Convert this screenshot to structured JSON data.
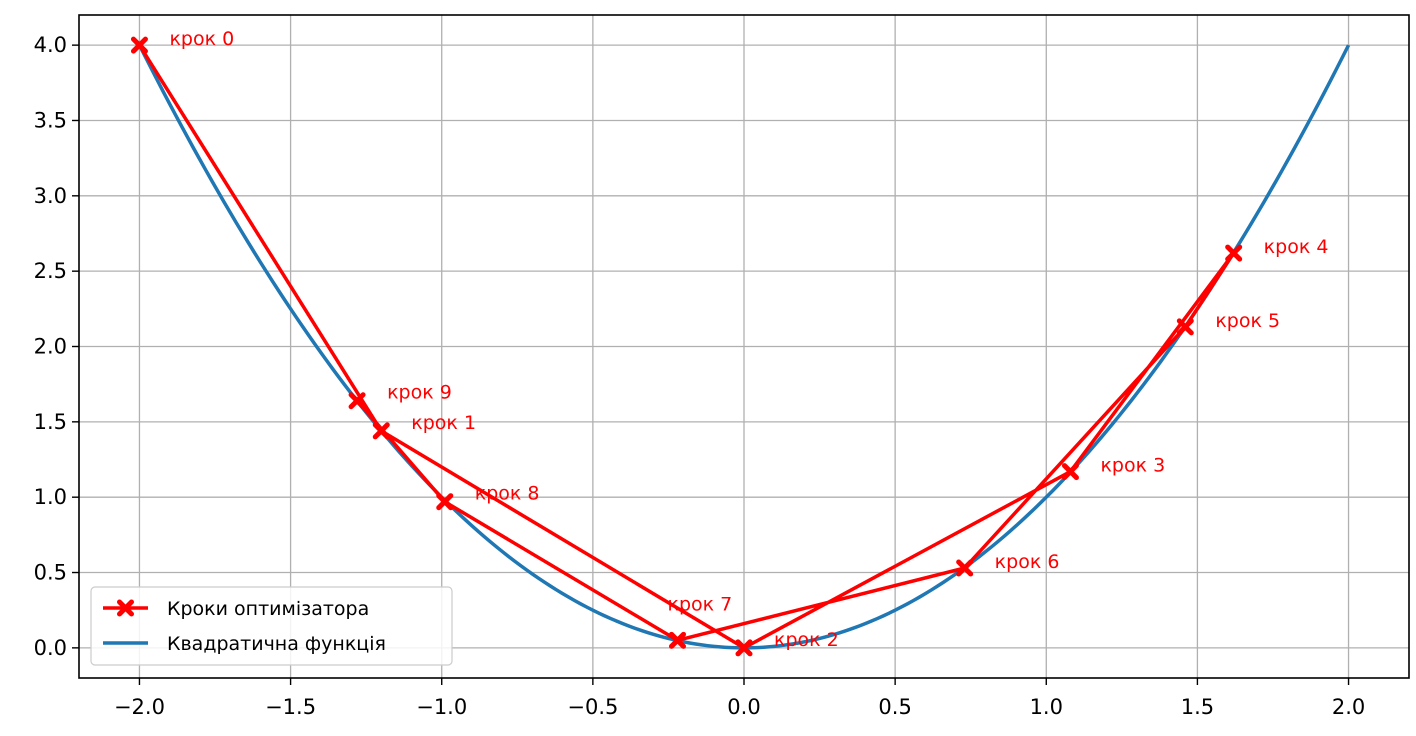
{
  "chart_data": {
    "type": "line",
    "title": "",
    "xlabel": "",
    "ylabel": "",
    "xlim": [
      -2.2,
      2.2
    ],
    "ylim": [
      -0.2,
      4.2
    ],
    "xticks": [
      -2.0,
      -1.5,
      -1.0,
      -0.5,
      0.0,
      0.5,
      1.0,
      1.5,
      2.0
    ],
    "yticks": [
      0.0,
      0.5,
      1.0,
      1.5,
      2.0,
      2.5,
      3.0,
      3.5,
      4.0
    ],
    "xtick_labels": [
      "−2.0",
      "−1.5",
      "−1.0",
      "−0.5",
      "0.0",
      "0.5",
      "1.0",
      "1.5",
      "2.0"
    ],
    "ytick_labels": [
      "0.0",
      "0.5",
      "1.0",
      "1.5",
      "2.0",
      "2.5",
      "3.0",
      "3.5",
      "4.0"
    ],
    "grid": true,
    "legend_position": "lower-left",
    "series": [
      {
        "name": "Кроки оптимізатора",
        "color": "#ff0000",
        "marker": "X",
        "x": [
          -2.0,
          -1.2,
          0.0,
          1.08,
          1.62,
          1.46,
          0.73,
          -0.22,
          -0.99,
          -1.28
        ],
        "y": [
          4.0,
          1.44,
          0.0,
          1.17,
          2.62,
          2.13,
          0.53,
          0.05,
          0.97,
          1.64
        ],
        "point_labels": [
          "крок 0",
          "крок 1",
          "крок 2",
          "крок 3",
          "крок 4",
          "крок 5",
          "крок 6",
          "крок 7",
          "крок 8",
          "крок 9"
        ]
      },
      {
        "name": "Квадратична функція",
        "color": "#1f77b4",
        "function": "x^2",
        "x_range": [
          -2.0,
          2.0
        ]
      }
    ]
  }
}
